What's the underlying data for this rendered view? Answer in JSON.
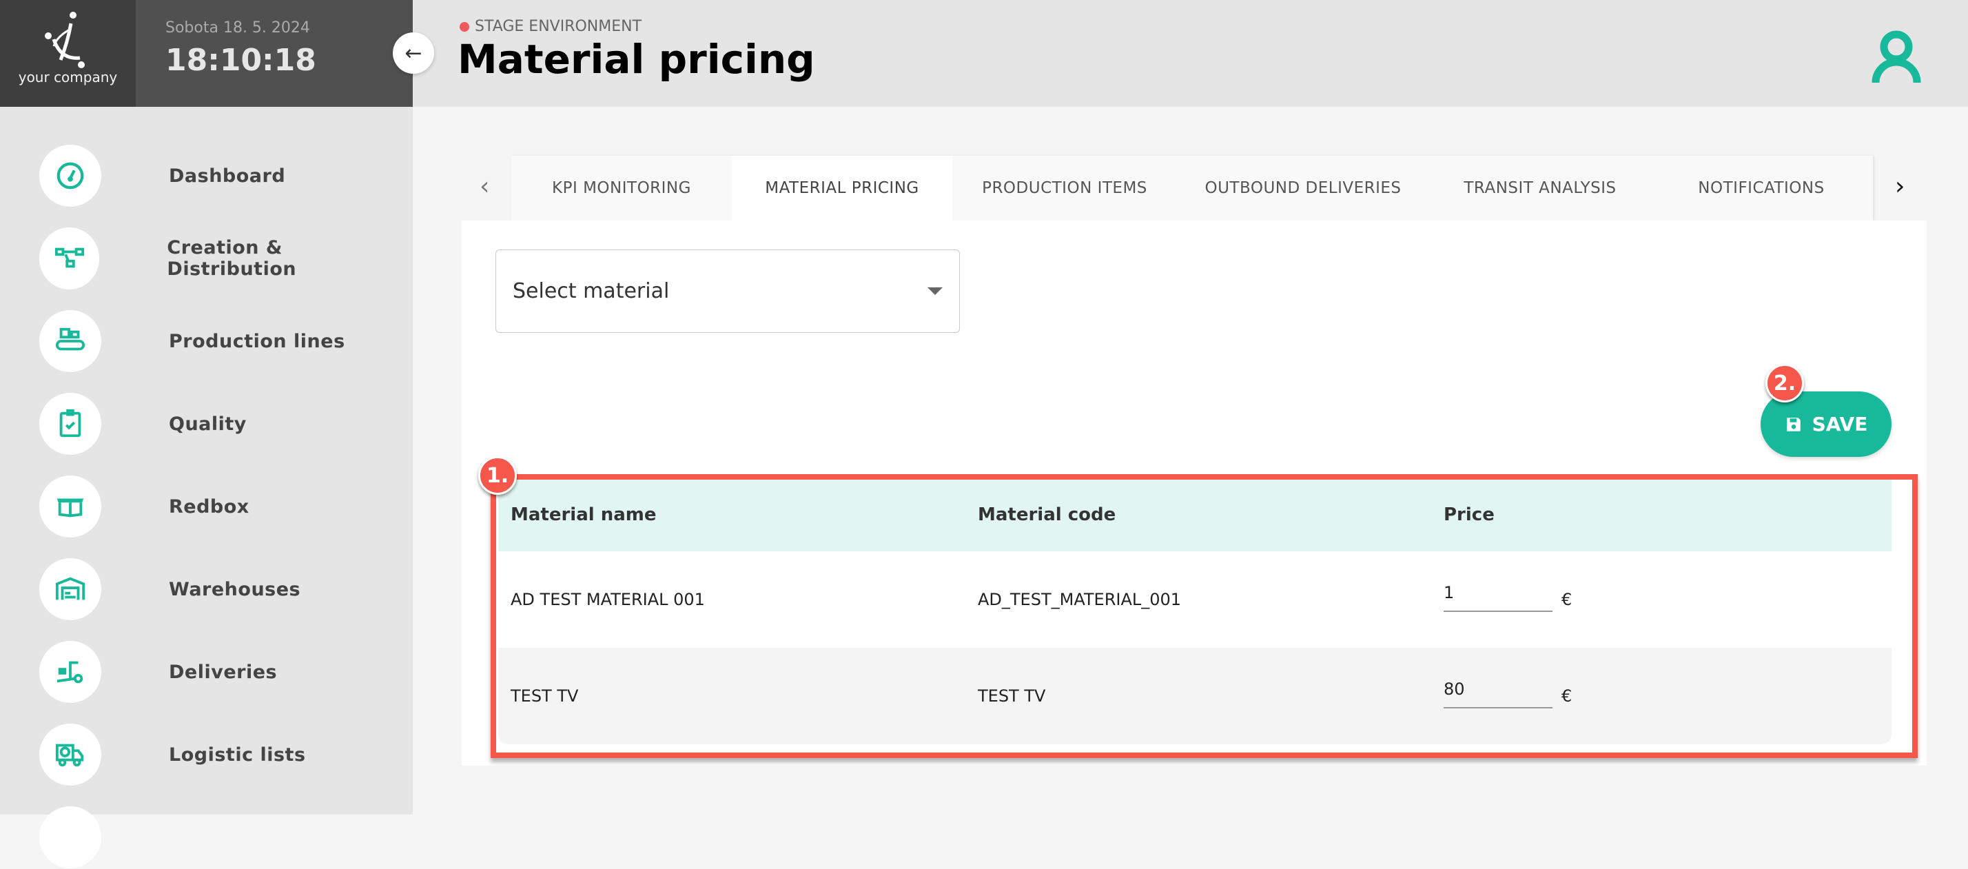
{
  "brand": {
    "logo_text": "your company"
  },
  "clock": {
    "date": "Sobota 18. 5. 2024",
    "time": "18:10:18"
  },
  "header": {
    "environment": "STAGE ENVIRONMENT",
    "title": "Material pricing",
    "env_color": "#f05a5a"
  },
  "accent": "#17b99a",
  "sidebar": {
    "items": [
      {
        "label": "Dashboard",
        "icon": "gauge-icon"
      },
      {
        "label": "Creation & Distribution",
        "icon": "flow-icon"
      },
      {
        "label": "Production lines",
        "icon": "conveyor-icon"
      },
      {
        "label": "Quality",
        "icon": "clipboard-check-icon"
      },
      {
        "label": "Redbox",
        "icon": "open-box-icon"
      },
      {
        "label": "Warehouses",
        "icon": "warehouse-icon"
      },
      {
        "label": "Deliveries",
        "icon": "hand-truck-icon"
      },
      {
        "label": "Logistic lists",
        "icon": "truck-clock-icon"
      }
    ]
  },
  "tabs": [
    {
      "label": "KPI MONITORING"
    },
    {
      "label": "MATERIAL PRICING",
      "active": true
    },
    {
      "label": "PRODUCTION ITEMS"
    },
    {
      "label": "OUTBOUND DELIVERIES"
    },
    {
      "label": "TRANSIT ANALYSIS"
    },
    {
      "label": "NOTIFICATIONS"
    }
  ],
  "main": {
    "select_placeholder": "Select material",
    "save_label": "SAVE",
    "badges": {
      "table": "1.",
      "save": "2."
    },
    "table": {
      "headers": [
        "Material name",
        "Material code",
        "Price"
      ],
      "rows": [
        {
          "name": "AD TEST MATERIAL 001",
          "code": "AD_TEST_MATERIAL_001",
          "price": "1",
          "currency": "€"
        },
        {
          "name": "TEST TV",
          "code": "TEST TV",
          "price": "80",
          "currency": "€"
        }
      ]
    }
  }
}
